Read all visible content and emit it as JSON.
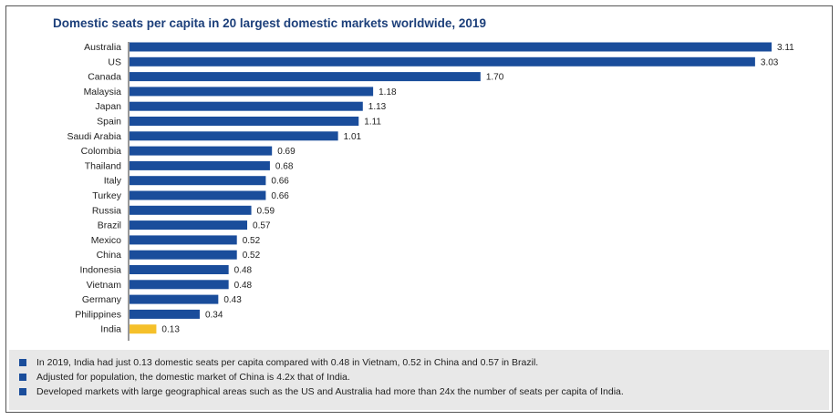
{
  "title": "Domestic seats per capita in 20 largest domestic markets worldwide, 2019",
  "colors": {
    "bar": "#1a4d9b",
    "highlight": "#f5c02a",
    "bullet": "#1a4d9b"
  },
  "chart_data": {
    "type": "bar",
    "orientation": "horizontal",
    "title": "Domestic seats per capita in 20 largest domestic markets worldwide, 2019",
    "categories": [
      "Australia",
      "US",
      "Canada",
      "Malaysia",
      "Japan",
      "Spain",
      "Saudi Arabia",
      "Colombia",
      "Thailand",
      "Italy",
      "Turkey",
      "Russia",
      "Brazil",
      "Mexico",
      "China",
      "Indonesia",
      "Vietnam",
      "Germany",
      "Philippines",
      "India"
    ],
    "values": [
      3.11,
      3.03,
      1.7,
      1.18,
      1.13,
      1.11,
      1.01,
      0.69,
      0.68,
      0.66,
      0.66,
      0.59,
      0.57,
      0.52,
      0.52,
      0.48,
      0.48,
      0.43,
      0.34,
      0.13
    ],
    "value_labels": [
      "3.11",
      "3.03",
      "1.70",
      "1.18",
      "1.13",
      "1.11",
      "1.01",
      "0.69",
      "0.68",
      "0.66",
      "0.66",
      "0.59",
      "0.57",
      "0.52",
      "0.52",
      "0.48",
      "0.48",
      "0.43",
      "0.34",
      "0.13"
    ],
    "highlight_category": "India",
    "xlim": [
      0,
      3.11
    ],
    "grid": false,
    "legend": "none"
  },
  "notes": [
    "In 2019, India had just 0.13 domestic seats per capita compared with 0.48 in Vietnam, 0.52 in China and 0.57 in Brazil.",
    "Adjusted for population, the domestic market of China is 4.2x that of India.",
    "Developed markets with large geographical areas such as the US and Australia had more than 24x the number of seats per capita of India."
  ]
}
